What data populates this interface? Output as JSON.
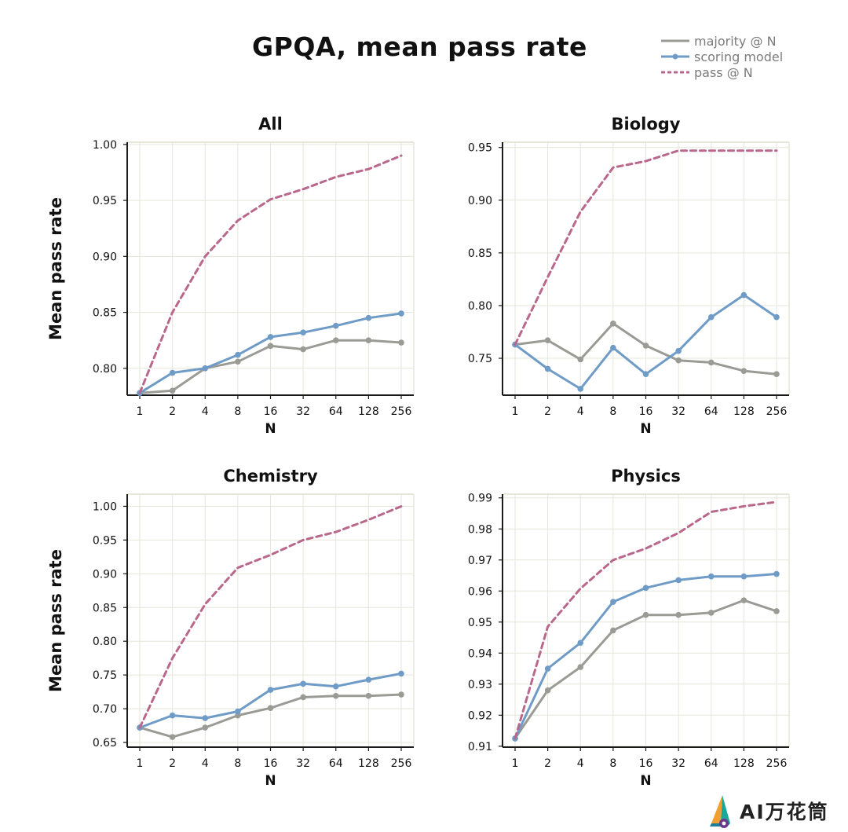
{
  "title": "GPQA, mean pass rate",
  "legend": [
    {
      "label": "majority @ N",
      "color": "#9b9b96",
      "style": "solid",
      "marker": false
    },
    {
      "label": "scoring model",
      "color": "#6f9bc7",
      "style": "solid",
      "marker": true
    },
    {
      "label": "pass @ N",
      "color": "#b9688c",
      "style": "dashed",
      "marker": false
    }
  ],
  "colors": {
    "majority": "#9b9b96",
    "scoring": "#6f9bc7",
    "pass": "#b9688c",
    "grid": "#e6e6da",
    "axis": "#1a1a1a"
  },
  "watermark": "AI万花筒",
  "chart_data": [
    {
      "type": "line",
      "title": "All",
      "xlabel": "N",
      "ylabel": "Mean pass rate",
      "x": [
        "1",
        "2",
        "4",
        "8",
        "16",
        "32",
        "64",
        "128",
        "256"
      ],
      "ylim": [
        0.776,
        1.002
      ],
      "yticks": [
        0.8,
        0.85,
        0.9,
        0.95,
        1.0
      ],
      "ytick_labels": [
        "0.80",
        "0.85",
        "0.90",
        "0.95",
        "1.00"
      ],
      "grid": true,
      "series": [
        {
          "name": "majority @ N",
          "key": "majority",
          "values": [
            0.778,
            0.78,
            0.8,
            0.806,
            0.82,
            0.817,
            0.825,
            0.825,
            0.823
          ]
        },
        {
          "name": "scoring model",
          "key": "scoring",
          "values": [
            0.778,
            0.796,
            0.8,
            0.812,
            0.828,
            0.832,
            0.838,
            0.845,
            0.849
          ]
        },
        {
          "name": "pass @ N",
          "key": "pass",
          "values": [
            0.778,
            0.85,
            0.9,
            0.932,
            0.951,
            0.96,
            0.971,
            0.978,
            0.99
          ]
        }
      ]
    },
    {
      "type": "line",
      "title": "Biology",
      "xlabel": "N",
      "ylabel": "",
      "x": [
        "1",
        "2",
        "4",
        "8",
        "16",
        "32",
        "64",
        "128",
        "256"
      ],
      "ylim": [
        0.715,
        0.955
      ],
      "yticks": [
        0.75,
        0.8,
        0.85,
        0.9,
        0.95
      ],
      "ytick_labels": [
        "0.75",
        "0.80",
        "0.85",
        "0.90",
        "0.95"
      ],
      "grid": true,
      "series": [
        {
          "name": "majority @ N",
          "key": "majority",
          "values": [
            0.763,
            0.767,
            0.749,
            0.783,
            0.762,
            0.748,
            0.746,
            0.738,
            0.735
          ]
        },
        {
          "name": "scoring model",
          "key": "scoring",
          "values": [
            0.763,
            0.74,
            0.721,
            0.76,
            0.735,
            0.757,
            0.789,
            0.81,
            0.789
          ]
        },
        {
          "name": "pass @ N",
          "key": "pass",
          "values": [
            0.763,
            0.827,
            0.889,
            0.931,
            0.937,
            0.947,
            0.947,
            0.947,
            0.947
          ]
        }
      ]
    },
    {
      "type": "line",
      "title": "Chemistry",
      "xlabel": "N",
      "ylabel": "Mean pass rate",
      "x": [
        "1",
        "2",
        "4",
        "8",
        "16",
        "32",
        "64",
        "128",
        "256"
      ],
      "ylim": [
        0.643,
        1.018
      ],
      "yticks": [
        0.65,
        0.7,
        0.75,
        0.8,
        0.85,
        0.9,
        0.95,
        1.0
      ],
      "ytick_labels": [
        "0.65",
        "0.70",
        "0.75",
        "0.80",
        "0.85",
        "0.90",
        "0.95",
        "1.00"
      ],
      "grid": true,
      "series": [
        {
          "name": "majority @ N",
          "key": "majority",
          "values": [
            0.672,
            0.658,
            0.672,
            0.69,
            0.701,
            0.717,
            0.719,
            0.719,
            0.721
          ]
        },
        {
          "name": "scoring model",
          "key": "scoring",
          "values": [
            0.672,
            0.69,
            0.686,
            0.696,
            0.728,
            0.737,
            0.733,
            0.743,
            0.752
          ]
        },
        {
          "name": "pass @ N",
          "key": "pass",
          "values": [
            0.672,
            0.775,
            0.855,
            0.909,
            0.928,
            0.95,
            0.962,
            0.98,
            1.0
          ]
        }
      ]
    },
    {
      "type": "line",
      "title": "Physics",
      "xlabel": "N",
      "ylabel": "",
      "x": [
        "1",
        "2",
        "4",
        "8",
        "16",
        "32",
        "64",
        "128",
        "256"
      ],
      "ylim": [
        0.9097,
        0.9912
      ],
      "yticks": [
        0.91,
        0.92,
        0.93,
        0.94,
        0.95,
        0.96,
        0.97,
        0.98,
        0.99
      ],
      "ytick_labels": [
        "0.91",
        "0.92",
        "0.93",
        "0.94",
        "0.95",
        "0.96",
        "0.97",
        "0.98",
        "0.99"
      ],
      "grid": true,
      "series": [
        {
          "name": "majority @ N",
          "key": "majority",
          "values": [
            0.9125,
            0.928,
            0.9355,
            0.9473,
            0.9523,
            0.9523,
            0.953,
            0.957,
            0.9535
          ]
        },
        {
          "name": "scoring model",
          "key": "scoring",
          "values": [
            0.9125,
            0.935,
            0.9433,
            0.9565,
            0.961,
            0.9635,
            0.9647,
            0.9647,
            0.9655
          ]
        },
        {
          "name": "pass @ N",
          "key": "pass",
          "values": [
            0.9125,
            0.9485,
            0.9608,
            0.97,
            0.9737,
            0.9787,
            0.9855,
            0.9873,
            0.9887
          ]
        }
      ]
    }
  ]
}
